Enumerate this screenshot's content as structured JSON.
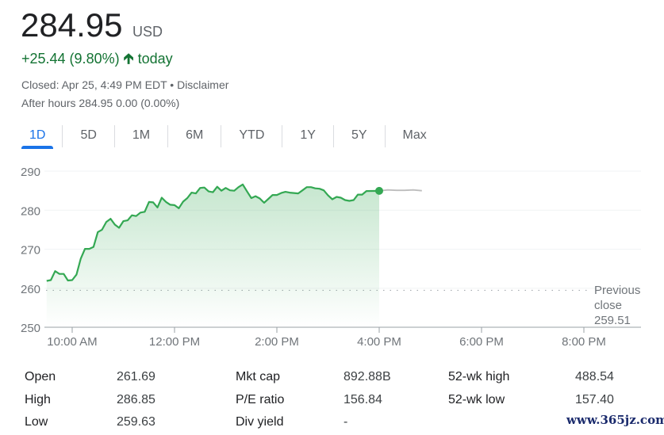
{
  "quote": {
    "price": "284.95",
    "currency": "USD",
    "change": "+25.44 (9.80%)",
    "change_arrow": "arrow-up-icon",
    "change_period": "today",
    "closed": "Closed: Apr 25, 4:49 PM EDT • ",
    "disclaimer": "Disclaimer",
    "after_hours": "After hours 284.95 0.00 (0.00%)"
  },
  "tabs": [
    {
      "label": "1D",
      "active": true
    },
    {
      "label": "5D"
    },
    {
      "label": "1M"
    },
    {
      "label": "6M"
    },
    {
      "label": "YTD"
    },
    {
      "label": "1Y"
    },
    {
      "label": "5Y"
    },
    {
      "label": "Max"
    }
  ],
  "colors": {
    "up": "#34a853",
    "accent": "#1a73e8",
    "after_hours_line": "#bdbdbd"
  },
  "chart_data": {
    "type": "area",
    "ylim": [
      250,
      290
    ],
    "yticks": [
      "290",
      "280",
      "270",
      "260",
      "250"
    ],
    "xticks": [
      "10:00 AM",
      "12:00 PM",
      "2:00 PM",
      "4:00 PM",
      "6:00 PM",
      "8:00 PM"
    ],
    "previous_close": {
      "label_line1": "Previous",
      "label_line2": "close",
      "value": "259.51"
    },
    "grid": true,
    "series": [
      {
        "session": "regular",
        "x": [
          "09:30",
          "09:35",
          "09:40",
          "09:45",
          "09:50",
          "09:55",
          "10:00",
          "10:05",
          "10:10",
          "10:15",
          "10:20",
          "10:25",
          "10:30",
          "10:35",
          "10:40",
          "10:45",
          "10:50",
          "10:55",
          "11:00",
          "11:05",
          "11:10",
          "11:15",
          "11:20",
          "11:25",
          "11:30",
          "11:35",
          "11:40",
          "11:45",
          "11:50",
          "11:55",
          "12:00",
          "12:05",
          "12:10",
          "12:15",
          "12:20",
          "12:25",
          "12:30",
          "12:35",
          "12:40",
          "12:45",
          "12:50",
          "12:55",
          "13:00",
          "13:05",
          "13:10",
          "13:15",
          "13:20",
          "13:25",
          "13:30",
          "13:35",
          "13:40",
          "13:45",
          "13:50",
          "13:55",
          "14:00",
          "14:05",
          "14:10",
          "14:15",
          "14:20",
          "14:25",
          "14:30",
          "14:35",
          "14:40",
          "14:45",
          "14:50",
          "14:55",
          "15:00",
          "15:05",
          "15:10",
          "15:15",
          "15:20",
          "15:25",
          "15:30",
          "15:35",
          "15:40",
          "15:45",
          "16:00"
        ],
        "y": [
          261.9,
          262.1,
          264.4,
          263.7,
          263.7,
          262.0,
          262.1,
          263.5,
          267.6,
          270.1,
          270.1,
          270.6,
          274.4,
          275.0,
          277.0,
          277.8,
          276.3,
          275.5,
          277.2,
          277.4,
          278.7,
          278.5,
          279.4,
          279.6,
          282.1,
          282.0,
          280.7,
          283.2,
          282.1,
          281.4,
          281.3,
          280.5,
          282.2,
          283.1,
          284.5,
          284.3,
          285.7,
          285.8,
          284.8,
          284.6,
          286.0,
          285.0,
          285.7,
          285.1,
          285.0,
          285.9,
          286.6,
          284.8,
          283.1,
          283.6,
          283.0,
          281.9,
          282.9,
          283.9,
          283.9,
          284.4,
          284.7,
          284.5,
          284.4,
          284.3,
          285.1,
          285.9,
          285.9,
          285.6,
          285.5,
          285.1,
          283.8,
          282.8,
          283.4,
          283.2,
          282.6,
          282.4,
          282.6,
          284.0,
          284.0,
          284.9,
          284.95
        ]
      },
      {
        "session": "after-hours",
        "x": [
          "16:00",
          "16:10",
          "16:20",
          "16:30",
          "16:40",
          "16:50"
        ],
        "y": [
          284.95,
          285.2,
          285.1,
          285.1,
          285.2,
          285.0
        ]
      }
    ]
  },
  "stats": [
    [
      {
        "label": "Open",
        "value": "261.69"
      },
      {
        "label": "Mkt cap",
        "value": "892.88B"
      },
      {
        "label": "52-wk high",
        "value": "488.54"
      }
    ],
    [
      {
        "label": "High",
        "value": "286.85"
      },
      {
        "label": "P/E ratio",
        "value": "156.84"
      },
      {
        "label": "52-wk low",
        "value": "157.40"
      }
    ],
    [
      {
        "label": "Low",
        "value": "259.63"
      },
      {
        "label": "Div yield",
        "value": "-"
      }
    ]
  ],
  "watermark": "www.365jz.com"
}
